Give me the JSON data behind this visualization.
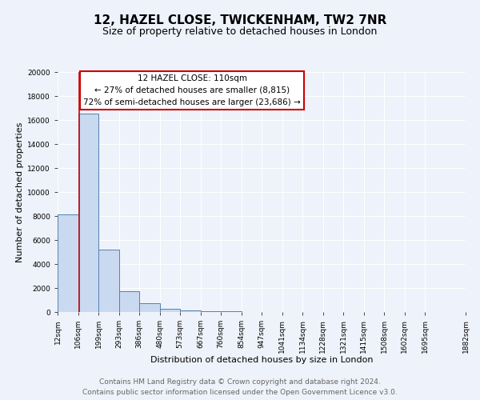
{
  "title_line1": "12, HAZEL CLOSE, TWICKENHAM, TW2 7NR",
  "title_line2": "Size of property relative to detached houses in London",
  "xlabel": "Distribution of detached houses by size in London",
  "ylabel": "Number of detached properties",
  "bar_values": [
    8150,
    16500,
    5200,
    1750,
    750,
    250,
    150,
    100,
    50,
    0,
    0,
    0,
    0,
    0,
    0,
    0,
    0,
    0,
    0
  ],
  "bin_edges": [
    12,
    106,
    199,
    293,
    386,
    480,
    573,
    667,
    760,
    854,
    947,
    1041,
    1134,
    1228,
    1321,
    1415,
    1508,
    1602,
    1695,
    1882
  ],
  "bin_labels": [
    "12sqm",
    "106sqm",
    "199sqm",
    "293sqm",
    "386sqm",
    "480sqm",
    "573sqm",
    "667sqm",
    "760sqm",
    "854sqm",
    "947sqm",
    "1041sqm",
    "1134sqm",
    "1228sqm",
    "1321sqm",
    "1415sqm",
    "1508sqm",
    "1602sqm",
    "1695sqm",
    "1882sqm"
  ],
  "bar_color": "#c9d9f0",
  "bar_edge_color": "#5580b0",
  "vline_x": 110,
  "vline_color": "#cc0000",
  "ylim": [
    0,
    20000
  ],
  "yticks": [
    0,
    2000,
    4000,
    6000,
    8000,
    10000,
    12000,
    14000,
    16000,
    18000,
    20000
  ],
  "bg_color": "#eef2fa",
  "grid_color": "#ffffff",
  "annotation_box_title": "12 HAZEL CLOSE: 110sqm",
  "annotation_line1": "← 27% of detached houses are smaller (8,815)",
  "annotation_line2": "72% of semi-detached houses are larger (23,686) →",
  "annotation_box_color": "#ffffff",
  "annotation_box_edge": "#cc0000",
  "footer_line1": "Contains HM Land Registry data © Crown copyright and database right 2024.",
  "footer_line2": "Contains public sector information licensed under the Open Government Licence v3.0.",
  "title_fontsize": 11,
  "subtitle_fontsize": 9,
  "axis_label_fontsize": 8,
  "tick_fontsize": 6.5,
  "footer_fontsize": 6.5,
  "annotation_fontsize": 7.5
}
